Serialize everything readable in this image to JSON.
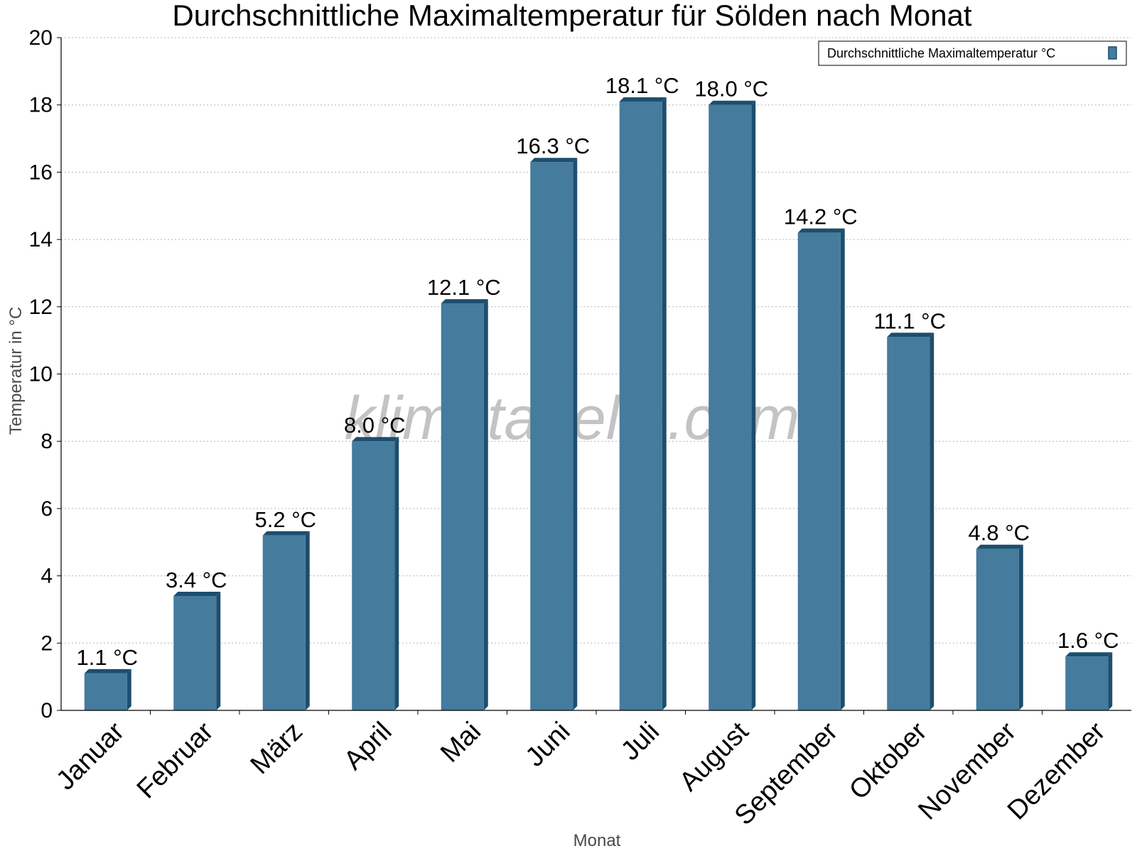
{
  "chart_data": {
    "type": "bar",
    "title": "Durchschnittliche Maximaltemperatur für Sölden nach Monat",
    "xlabel": "Monat",
    "ylabel": "Temperatur in °C",
    "ylim": [
      0,
      20
    ],
    "yticks": [
      0,
      2,
      4,
      6,
      8,
      10,
      12,
      14,
      16,
      18,
      20
    ],
    "grid": true,
    "legend_position": "top-right",
    "watermark": "klimatabelle.com",
    "categories": [
      "Januar",
      "Februar",
      "März",
      "April",
      "Mai",
      "Juni",
      "Juli",
      "August",
      "September",
      "Oktober",
      "November",
      "Dezember"
    ],
    "series": [
      {
        "name": "Durchschnittliche Maximaltemperatur °C",
        "values": [
          1.1,
          3.4,
          5.2,
          8.0,
          12.1,
          16.3,
          18.1,
          18.0,
          14.2,
          11.1,
          4.8,
          1.6
        ],
        "labels": [
          "1.1 °C",
          "3.4 °C",
          "5.2 °C",
          "8.0 °C",
          "12.1 °C",
          "16.3 °C",
          "18.1 °C",
          "18.0 °C",
          "14.2 °C",
          "11.1 °C",
          "4.8 °C",
          "1.6 °C"
        ],
        "color": "#457b9d",
        "edge_color": "#1d4e6e"
      }
    ]
  }
}
